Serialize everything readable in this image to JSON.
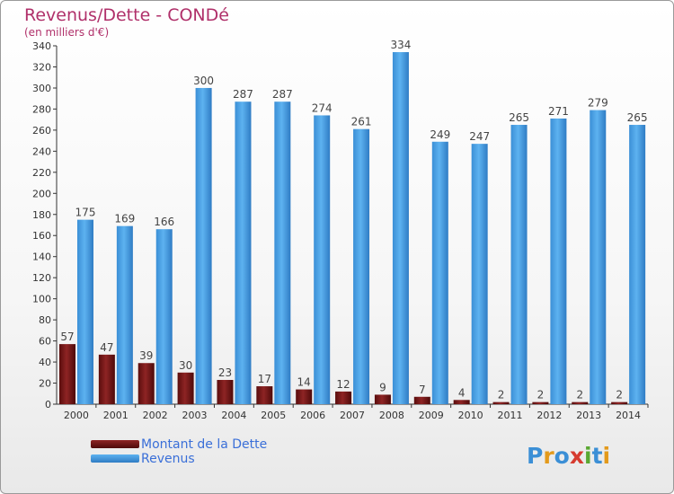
{
  "title": "Revenus/Dette - CONDé",
  "subtitle": "(en milliers d'€)",
  "logo_text": "Proxiti",
  "colors": {
    "debt": "#7a1a1a",
    "revenue": "#4aa3e8",
    "title": "#b0306a",
    "legend_text": "#3a6fd8"
  },
  "chart_data": {
    "type": "bar",
    "categories": [
      "2000",
      "2001",
      "2002",
      "2003",
      "2004",
      "2005",
      "2006",
      "2007",
      "2008",
      "2009",
      "2010",
      "2011",
      "2012",
      "2013",
      "2014"
    ],
    "series": [
      {
        "name": "Montant de la Dette",
        "values": [
          57,
          47,
          39,
          30,
          23,
          17,
          14,
          12,
          9,
          7,
          4,
          2,
          2,
          2,
          2
        ]
      },
      {
        "name": "Revenus",
        "values": [
          175,
          169,
          166,
          300,
          287,
          287,
          274,
          261,
          334,
          249,
          247,
          265,
          271,
          279,
          265
        ]
      }
    ],
    "ylim": [
      0,
      340
    ],
    "yticks": [
      0,
      20,
      40,
      60,
      80,
      100,
      120,
      140,
      160,
      180,
      200,
      220,
      240,
      260,
      280,
      300,
      320,
      340
    ],
    "grid": false,
    "legend_position": "bottom-left"
  }
}
